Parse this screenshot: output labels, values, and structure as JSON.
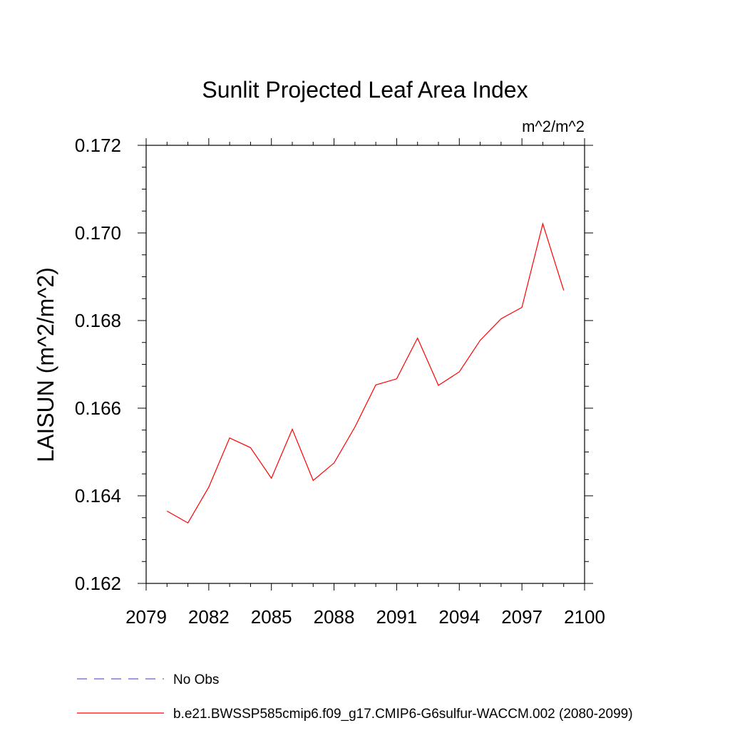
{
  "chart_data": {
    "type": "line",
    "title": "Sunlit Projected Leaf Area Index",
    "units_label": "m^2/m^2",
    "ylabel": "LAISUN  (m^2/m^2)",
    "xlabel": "",
    "xlim": [
      2079,
      2100
    ],
    "ylim": [
      0.162,
      0.172
    ],
    "x_ticks": [
      2079,
      2082,
      2085,
      2088,
      2091,
      2094,
      2097,
      2100
    ],
    "x_tick_labels": [
      "2079",
      "2082",
      "2085",
      "2088",
      "2091",
      "2094",
      "2097",
      "2100"
    ],
    "y_ticks": [
      0.162,
      0.164,
      0.166,
      0.168,
      0.17,
      0.172
    ],
    "y_tick_labels": [
      "0.162",
      "0.164",
      "0.166",
      "0.168",
      "0.170",
      "0.172"
    ],
    "grid": false,
    "legend_position": "bottom",
    "series": [
      {
        "name": "b.e21.BWSSP585cmip6.f09_g17.CMIP6-G6sulfur-WACCM.002 (2080-2099)",
        "color": "#ff0000",
        "style": "solid",
        "x": [
          2080,
          2081,
          2082,
          2083,
          2084,
          2085,
          2086,
          2087,
          2088,
          2089,
          2090,
          2091,
          2092,
          2093,
          2094,
          2095,
          2096,
          2097,
          2098,
          2099
        ],
        "y": [
          0.16365,
          0.16338,
          0.1642,
          0.16532,
          0.1651,
          0.1644,
          0.16552,
          0.16435,
          0.16475,
          0.16557,
          0.16653,
          0.16667,
          0.1676,
          0.16652,
          0.16683,
          0.16755,
          0.16804,
          0.1683,
          0.17021,
          0.16869
        ]
      }
    ],
    "legend": [
      {
        "label": "No Obs",
        "color": "#6a5acd",
        "style": "dashed"
      },
      {
        "label": "b.e21.BWSSP585cmip6.f09_g17.CMIP6-G6sulfur-WACCM.002 (2080-2099)",
        "color": "#ff0000",
        "style": "solid"
      }
    ]
  }
}
